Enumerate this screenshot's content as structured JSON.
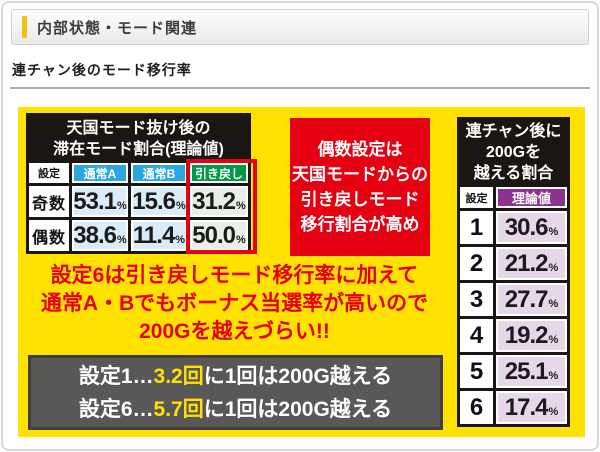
{
  "header": {
    "section_title": "内部状態・モード関連"
  },
  "subheading": "連チャン後のモード移行率",
  "left_table": {
    "title_lines": [
      "天国モード抜け後の",
      "滞在モード割合(理論値)"
    ],
    "col_headers": {
      "setting": "設定",
      "normal_a": "通常A",
      "normal_b": "通常B",
      "hikimodoshi": "引き戻し"
    },
    "rows": [
      {
        "label": "奇数",
        "normal_a": "53.1",
        "normal_b": "15.6",
        "hikimodoshi": "31.2"
      },
      {
        "label": "偶数",
        "normal_a": "38.6",
        "normal_b": "11.4",
        "hikimodoshi": "50.0"
      }
    ]
  },
  "red_callout": {
    "lines": [
      "偶数設定は",
      "天国モードからの",
      "引き戻しモード",
      "移行割合が高め"
    ]
  },
  "right_table": {
    "title_lines": [
      "連チャン後に",
      "200Gを",
      "越える割合"
    ],
    "col_headers": {
      "setting": "設定",
      "theoretical": "理論値"
    },
    "rows": [
      {
        "setting": "1",
        "value": "30.6"
      },
      {
        "setting": "2",
        "value": "21.2"
      },
      {
        "setting": "3",
        "value": "27.7"
      },
      {
        "setting": "4",
        "value": "19.2"
      },
      {
        "setting": "5",
        "value": "25.1"
      },
      {
        "setting": "6",
        "value": "17.4"
      }
    ]
  },
  "warning": {
    "lines": [
      "設定6は引き戻しモード移行率に加えて",
      "通常A・Bでもボーナス当選率が高いので",
      "200Gを越えづらい!!"
    ]
  },
  "summary": {
    "lines": [
      {
        "prefix": "設定1…",
        "highlight": "3.2回",
        "suffix": "に1回は200G越える"
      },
      {
        "prefix": "設定6…",
        "highlight": "5.7回",
        "suffix": "に1回は200G越える"
      }
    ]
  },
  "units": {
    "percent": "%"
  },
  "colors": {
    "yellow_bg": "#ffe202",
    "red": "#e50012",
    "blue_header": "#2aa7e0",
    "green_header": "#009944",
    "purple_header": "#8e3191",
    "light_blue_cell": "#d9ecf7",
    "light_green_cell": "#e8eee8",
    "light_purple_cell": "#e6d8e9",
    "dark_gray_box": "#595757",
    "accent_yellow": "#f0c11a"
  }
}
